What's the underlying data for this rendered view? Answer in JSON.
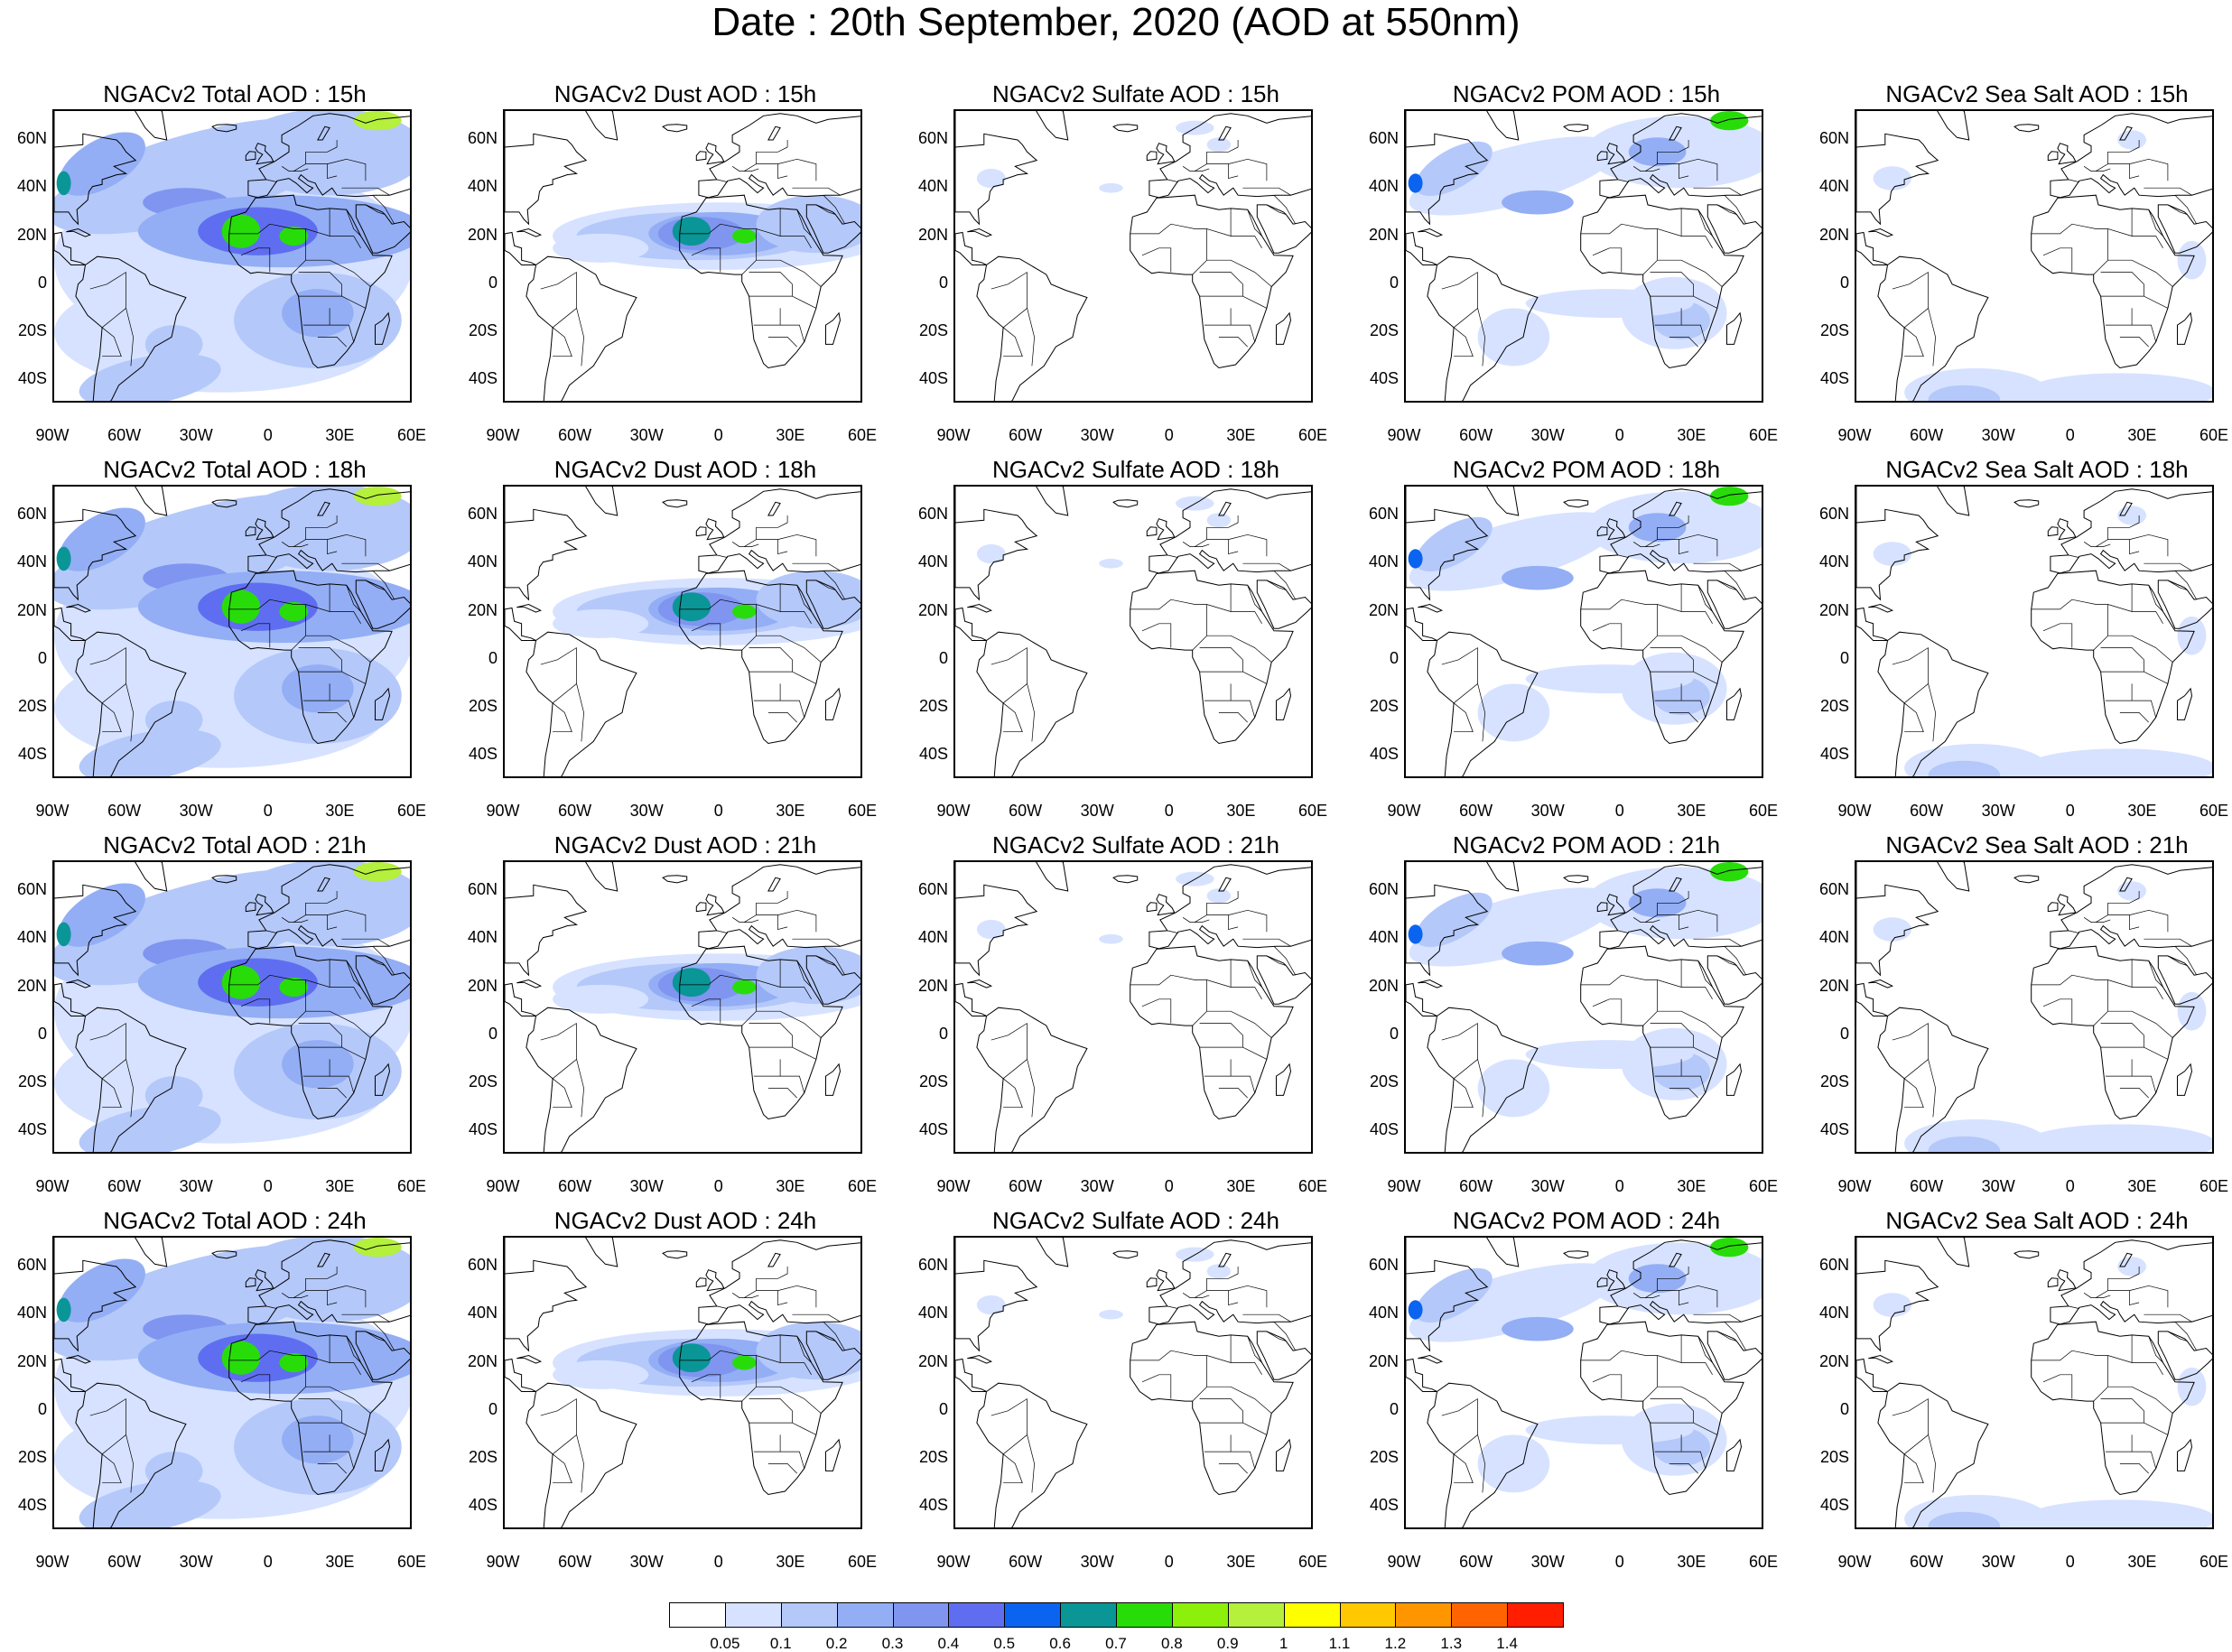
{
  "figure": {
    "title": "Date : 20th September, 2020 (AOD at 550nm)"
  },
  "lat_ticks": [
    "60N",
    "40N",
    "20N",
    "0",
    "20S",
    "40S"
  ],
  "lon_ticks": [
    "90W",
    "60W",
    "30W",
    "0",
    "30E",
    "60E"
  ],
  "panels": [
    {
      "title": "NGACv2 Total AOD : 15h",
      "species": "total",
      "hour": "15h"
    },
    {
      "title": "NGACv2 Dust AOD : 15h",
      "species": "dust",
      "hour": "15h"
    },
    {
      "title": "NGACv2 Sulfate AOD : 15h",
      "species": "sulfate",
      "hour": "15h"
    },
    {
      "title": "NGACv2 POM AOD : 15h",
      "species": "pom",
      "hour": "15h"
    },
    {
      "title": "NGACv2 Sea Salt AOD : 15h",
      "species": "seasalt",
      "hour": "15h"
    },
    {
      "title": "NGACv2 Total AOD : 18h",
      "species": "total",
      "hour": "18h"
    },
    {
      "title": "NGACv2 Dust AOD : 18h",
      "species": "dust",
      "hour": "18h"
    },
    {
      "title": "NGACv2 Sulfate AOD : 18h",
      "species": "sulfate",
      "hour": "18h"
    },
    {
      "title": "NGACv2 POM AOD : 18h",
      "species": "pom",
      "hour": "18h"
    },
    {
      "title": "NGACv2 Sea Salt AOD : 18h",
      "species": "seasalt",
      "hour": "18h"
    },
    {
      "title": "NGACv2 Total AOD : 21h",
      "species": "total",
      "hour": "21h"
    },
    {
      "title": "NGACv2 Dust AOD : 21h",
      "species": "dust",
      "hour": "21h"
    },
    {
      "title": "NGACv2 Sulfate AOD : 21h",
      "species": "sulfate",
      "hour": "21h"
    },
    {
      "title": "NGACv2 POM AOD : 21h",
      "species": "pom",
      "hour": "21h"
    },
    {
      "title": "NGACv2 Sea Salt AOD : 21h",
      "species": "seasalt",
      "hour": "21h"
    },
    {
      "title": "NGACv2 Total AOD : 24h",
      "species": "total",
      "hour": "24h"
    },
    {
      "title": "NGACv2 Dust AOD : 24h",
      "species": "dust",
      "hour": "24h"
    },
    {
      "title": "NGACv2 Sulfate AOD : 24h",
      "species": "sulfate",
      "hour": "24h"
    },
    {
      "title": "NGACv2 POM AOD : 24h",
      "species": "pom",
      "hour": "24h"
    },
    {
      "title": "NGACv2 Sea Salt  AOD : 24h",
      "species": "seasalt",
      "hour": "24h"
    }
  ],
  "colorbar": {
    "labels": [
      "0.05",
      "0.1",
      "0.2",
      "0.3",
      "0.4",
      "0.5",
      "0.6",
      "0.7",
      "0.8",
      "0.9",
      "1",
      "1.1",
      "1.2",
      "1.3",
      "1.4"
    ],
    "colors": [
      "#ffffff",
      "#d6e2ff",
      "#b4c8fa",
      "#93aef5",
      "#7f95f0",
      "#5f6ef0",
      "#0a64f0",
      "#0a9696",
      "#28dc0a",
      "#8cf00a",
      "#b4f03c",
      "#ffff00",
      "#ffc800",
      "#ff9600",
      "#ff6400",
      "#ff1e00"
    ]
  },
  "colors": {
    "coastline": "#000000",
    "land_fill": "#ffffff"
  }
}
